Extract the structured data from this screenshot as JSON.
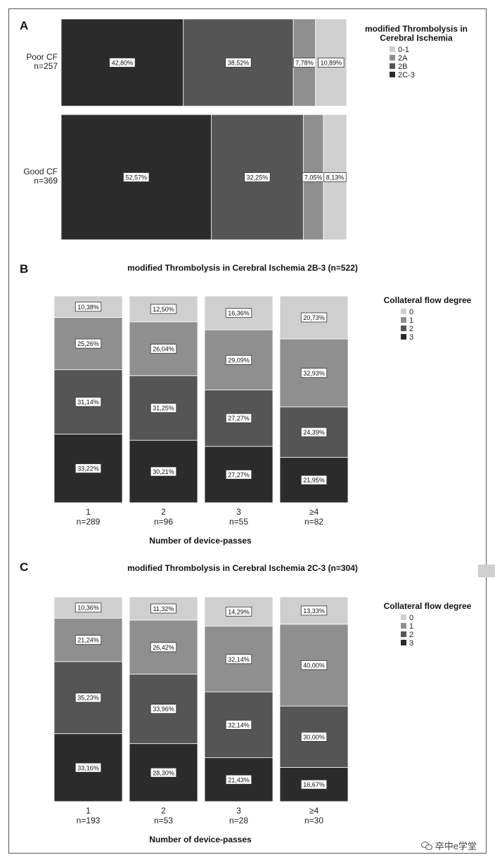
{
  "colors": {
    "cat_0": "#cfcfcf",
    "cat_1": "#8f8f8f",
    "cat_2": "#555555",
    "cat_3": "#2b2b2b",
    "background": "#ffffff"
  },
  "watermark": "卒中e学堂",
  "watermark_icon": "wechat-icon",
  "chart_data": [
    {
      "panel": "A",
      "type": "bar",
      "orientation": "horizontal",
      "stacked": true,
      "mosaic": true,
      "title": "",
      "categories": [
        "Poor CF\nn=257",
        "Good CF\nn=369"
      ],
      "category_weights": [
        257,
        369
      ],
      "legend": {
        "title": "modified Thrombolysis in Cerebral Ischemia",
        "position": "top-right",
        "entries": [
          "0-1",
          "2A",
          "2B",
          "2C-3"
        ]
      },
      "series": [
        {
          "name": "2C-3",
          "color": "#2b2b2b",
          "values": [
            42.8,
            52.57
          ],
          "labels": [
            "42,80%",
            "52,57%"
          ]
        },
        {
          "name": "2B",
          "color": "#555555",
          "values": [
            38.52,
            32.25
          ],
          "labels": [
            "38,52%",
            "32,25%"
          ]
        },
        {
          "name": "2A",
          "color": "#8f8f8f",
          "values": [
            7.78,
            7.05
          ],
          "labels": [
            "7,78%",
            "7,05%"
          ]
        },
        {
          "name": "0-1",
          "color": "#cfcfcf",
          "values": [
            10.89,
            8.13
          ],
          "labels": [
            "10,89%",
            "8,13%"
          ]
        }
      ]
    },
    {
      "panel": "B",
      "type": "bar",
      "orientation": "vertical",
      "stacked": true,
      "title": "modified Thrombolysis in Cerebral Ischemia 2B-3 (n=522)",
      "xlabel": "Number of device-passes",
      "categories": [
        "1",
        "2",
        "3",
        "≥4"
      ],
      "category_sublabels": [
        "n=289",
        "n=96",
        "n=55",
        "n=82"
      ],
      "legend": {
        "title": "Collateral flow degree",
        "position": "top-right",
        "entries": [
          "0",
          "1",
          "2",
          "3"
        ]
      },
      "series": [
        {
          "name": "3",
          "color": "#2b2b2b",
          "values": [
            33.22,
            30.21,
            27.27,
            21.95
          ],
          "labels": [
            "33,22%",
            "30,21%",
            "27,27%",
            "21,95%"
          ]
        },
        {
          "name": "2",
          "color": "#555555",
          "values": [
            31.14,
            31.25,
            27.27,
            24.39
          ],
          "labels": [
            "31,14%",
            "31,25%",
            "27,27%",
            "24,39%"
          ]
        },
        {
          "name": "1",
          "color": "#8f8f8f",
          "values": [
            25.26,
            26.04,
            29.09,
            32.93
          ],
          "labels": [
            "25,26%",
            "26,04%",
            "29,09%",
            "32,93%"
          ]
        },
        {
          "name": "0",
          "color": "#cfcfcf",
          "values": [
            10.38,
            12.5,
            16.36,
            20.73
          ],
          "labels": [
            "10,38%",
            "12,50%",
            "16,36%",
            "20,73%"
          ]
        }
      ]
    },
    {
      "panel": "C",
      "type": "bar",
      "orientation": "vertical",
      "stacked": true,
      "title": "modified Thrombolysis in Cerebral Ischemia 2C-3 (n=304)",
      "xlabel": "Number of device-passes",
      "categories": [
        "1",
        "2",
        "3",
        "≥4"
      ],
      "category_sublabels": [
        "n=193",
        "n=53",
        "n=28",
        "n=30"
      ],
      "legend": {
        "title": "Collateral flow degree",
        "position": "top-right",
        "entries": [
          "0",
          "1",
          "2",
          "3"
        ]
      },
      "series": [
        {
          "name": "3",
          "color": "#2b2b2b",
          "values": [
            33.16,
            28.3,
            21.43,
            16.67
          ],
          "labels": [
            "33,16%",
            "28,30%",
            "21,43%",
            "16,67%"
          ]
        },
        {
          "name": "2",
          "color": "#555555",
          "values": [
            35.23,
            33.96,
            32.14,
            30.0
          ],
          "labels": [
            "35,23%",
            "33,96%",
            "32,14%",
            "30,00%"
          ]
        },
        {
          "name": "1",
          "color": "#8f8f8f",
          "values": [
            21.24,
            26.42,
            32.14,
            40.0
          ],
          "labels": [
            "21,24%",
            "26,42%",
            "32,14%",
            "40,00%"
          ]
        },
        {
          "name": "0",
          "color": "#cfcfcf",
          "values": [
            10.36,
            11.32,
            14.29,
            13.33
          ],
          "labels": [
            "10,36%",
            "11,32%",
            "14,29%",
            "13,33%"
          ]
        }
      ]
    }
  ]
}
